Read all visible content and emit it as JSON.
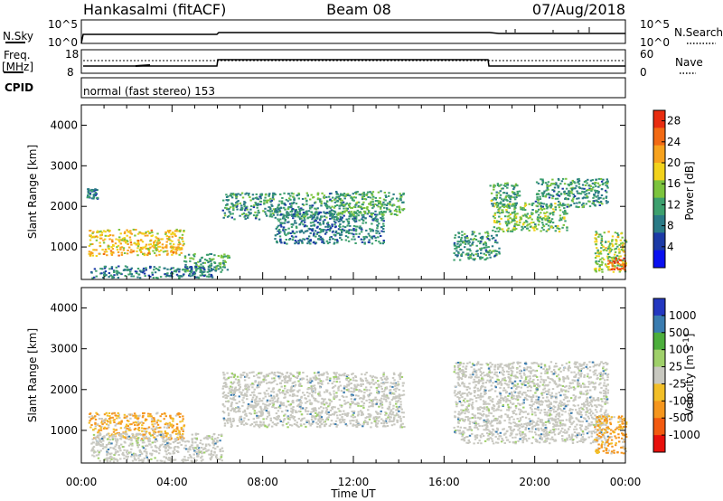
{
  "header": {
    "station": "Hankasalmi (fitACF)",
    "beam": "Beam 08",
    "date": "07/Aug/2018"
  },
  "noise_panel": {
    "left_label": "N.Sky",
    "right_label": "N.Search",
    "left_ticks": [
      "10^5",
      "10^0"
    ],
    "right_ticks": [
      "10^5",
      "10^0"
    ]
  },
  "freq_panel": {
    "left_label_1": "Freq.",
    "left_label_2": "[MHz]",
    "right_label": "Nave",
    "left_ticks": [
      "18",
      "8"
    ],
    "right_ticks": [
      "60",
      "0"
    ]
  },
  "cpid": {
    "label": "CPID",
    "value": "normal (fast stereo) 153"
  },
  "colors": {
    "power_scale": [
      "#0a10f0",
      "#1c3aa6",
      "#2a7a86",
      "#3da06e",
      "#7cc43e",
      "#f2d21c",
      "#f7a21e",
      "#f26a14",
      "#e82c10"
    ],
    "velocity_scale": [
      "#e8100c",
      "#f25a10",
      "#f5961e",
      "#f2bf28",
      "#c8c8c0",
      "#9fd06a",
      "#4cae3c",
      "#3a7cb0",
      "#2438c0"
    ]
  },
  "chart_data": [
    {
      "type": "heatmap",
      "title": "",
      "panel": "power",
      "xlabel": "",
      "ylabel": "Slant Range [km]",
      "xlim": [
        "00:00",
        "24:00"
      ],
      "ylim": [
        200,
        4500
      ],
      "x_ticks": [
        "00:00",
        "04:00",
        "08:00",
        "12:00",
        "16:00",
        "20:00",
        "00:00"
      ],
      "y_ticks": [
        1000,
        2000,
        3000,
        4000
      ],
      "colorbar": {
        "label": "Power [dB]",
        "ticks": [
          4,
          8,
          12,
          16,
          20,
          24,
          28
        ],
        "range": [
          0,
          30
        ]
      },
      "regions": [
        {
          "t0": 0.3,
          "t1": 4.5,
          "r0": 800,
          "r1": 1450,
          "level": 20,
          "note": "strong band decreasing in range"
        },
        {
          "t0": 4.5,
          "t1": 6.5,
          "r0": 400,
          "r1": 850,
          "level": 12
        },
        {
          "t0": 0.4,
          "t1": 5.8,
          "r0": 250,
          "r1": 550,
          "level": 8
        },
        {
          "t0": 0.2,
          "t1": 0.7,
          "r0": 2200,
          "r1": 2450,
          "level": 8
        },
        {
          "t0": 6.2,
          "t1": 11.6,
          "r0": 1700,
          "r1": 2350,
          "level": 10
        },
        {
          "t0": 8.5,
          "t1": 13.3,
          "r0": 1100,
          "r1": 1900,
          "level": 8
        },
        {
          "t0": 11.2,
          "t1": 14.2,
          "r0": 1800,
          "r1": 2400,
          "level": 12
        },
        {
          "t0": 16.4,
          "t1": 18.4,
          "r0": 700,
          "r1": 1400,
          "level": 10
        },
        {
          "t0": 18.1,
          "t1": 21.4,
          "r0": 1400,
          "r1": 2100,
          "level": 14
        },
        {
          "t0": 20.0,
          "t1": 23.2,
          "r0": 2000,
          "r1": 2700,
          "level": 10
        },
        {
          "t0": 18.0,
          "t1": 19.3,
          "r0": 2000,
          "r1": 2600,
          "level": 12
        },
        {
          "t0": 22.6,
          "t1": 24.0,
          "r0": 400,
          "r1": 1400,
          "level": 16
        },
        {
          "t0": 23.2,
          "t1": 24.0,
          "r0": 450,
          "r1": 750,
          "level": 28
        }
      ]
    },
    {
      "type": "heatmap",
      "title": "",
      "panel": "velocity",
      "xlabel": "Time UT",
      "ylabel": "Slant Range [km]",
      "xlim": [
        "00:00",
        "24:00"
      ],
      "ylim": [
        200,
        4500
      ],
      "x_ticks": [
        "00:00",
        "04:00",
        "08:00",
        "12:00",
        "16:00",
        "20:00",
        "00:00"
      ],
      "y_ticks": [
        1000,
        2000,
        3000,
        4000
      ],
      "colorbar": {
        "label": "Velocity [m s^-1]",
        "ticks": [
          "1000",
          "500",
          "100",
          "25",
          "-25",
          "-100",
          "-500",
          "-1000"
        ]
      },
      "regions": [
        {
          "t0": 0.3,
          "t1": 4.5,
          "r0": 800,
          "r1": 1450,
          "value": -300
        },
        {
          "t0": 0.4,
          "t1": 6.2,
          "r0": 250,
          "r1": 950,
          "value": 0
        },
        {
          "t0": 6.2,
          "t1": 14.2,
          "r0": 1100,
          "r1": 2450,
          "value": 0
        },
        {
          "t0": 16.4,
          "t1": 23.2,
          "r0": 700,
          "r1": 2700,
          "value": 0
        },
        {
          "t0": 22.6,
          "t1": 24.0,
          "r0": 450,
          "r1": 1400,
          "value": -200
        }
      ]
    }
  ]
}
